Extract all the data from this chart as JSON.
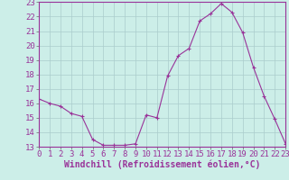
{
  "x": [
    0,
    1,
    2,
    3,
    4,
    5,
    6,
    7,
    8,
    9,
    10,
    11,
    12,
    13,
    14,
    15,
    16,
    17,
    18,
    19,
    20,
    21,
    22,
    23
  ],
  "y": [
    16.3,
    16.0,
    15.8,
    15.3,
    15.1,
    13.5,
    13.1,
    13.1,
    13.1,
    13.2,
    15.2,
    15.0,
    17.9,
    19.3,
    19.8,
    21.7,
    22.2,
    22.9,
    22.3,
    20.9,
    18.5,
    16.5,
    14.9,
    13.2
  ],
  "color": "#993399",
  "bg_color": "#cceee8",
  "grid_color": "#aacccc",
  "ylim": [
    13,
    23
  ],
  "xlim": [
    0,
    23
  ],
  "yticks": [
    13,
    14,
    15,
    16,
    17,
    18,
    19,
    20,
    21,
    22,
    23
  ],
  "xticks": [
    0,
    1,
    2,
    3,
    4,
    5,
    6,
    7,
    8,
    9,
    10,
    11,
    12,
    13,
    14,
    15,
    16,
    17,
    18,
    19,
    20,
    21,
    22,
    23
  ],
  "xlabel": "Windchill (Refroidissement éolien,°C)",
  "xlabel_fontsize": 7,
  "tick_fontsize": 6.5,
  "marker": "+",
  "linewidth": 0.8,
  "markersize": 3.5,
  "markeredgewidth": 0.8
}
